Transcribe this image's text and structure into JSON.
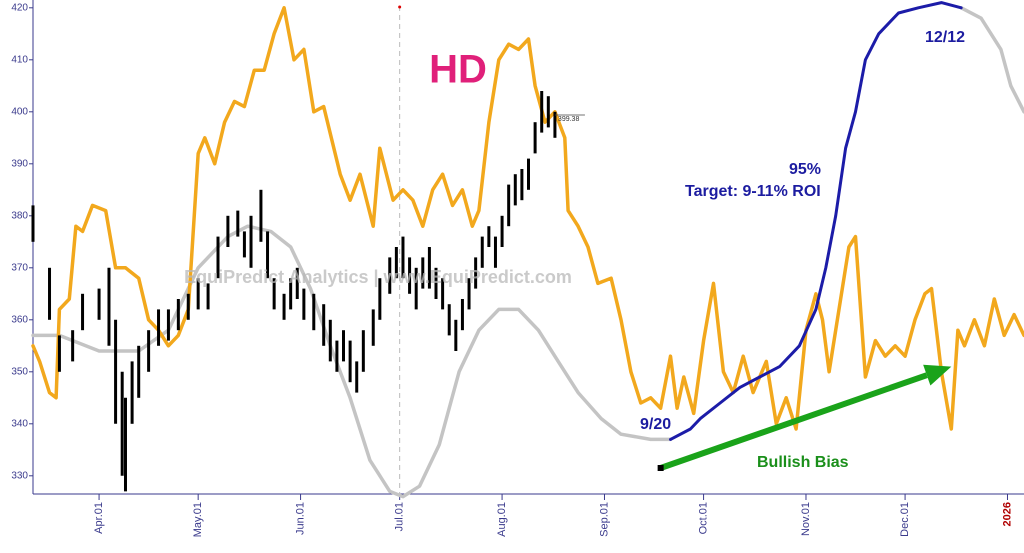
{
  "chart_data": {
    "type": "line",
    "title": "HD",
    "watermark": "EquiPredict Analytics | www.EquiPredict.com",
    "xlim": [
      -20,
      280
    ],
    "ylim": [
      326.5,
      421.5
    ],
    "yticks": [
      330,
      340,
      350,
      360,
      370,
      380,
      390,
      400,
      410,
      420
    ],
    "xticks": [
      {
        "value": 0,
        "label": "Apr.01"
      },
      {
        "value": 30,
        "label": "May.01"
      },
      {
        "value": 61,
        "label": "Jun.01"
      },
      {
        "value": 91,
        "label": "Jul.01"
      },
      {
        "value": 122,
        "label": "Aug.01"
      },
      {
        "value": 153,
        "label": "Sep.01"
      },
      {
        "value": 183,
        "label": "Oct.01"
      },
      {
        "value": 214,
        "label": "Nov.01"
      },
      {
        "value": 244,
        "label": "Dec.01"
      },
      {
        "value": 275,
        "label": "2026",
        "color": "#b00000"
      }
    ],
    "marker_x": 91,
    "series": [
      {
        "color": "#f2a81d",
        "x": [
          -20,
          -18,
          -15,
          -13,
          -12,
          -9,
          -7,
          -5,
          -2,
          2,
          5,
          8,
          12,
          15,
          18,
          21,
          24,
          27,
          30,
          32,
          35,
          38,
          41,
          44,
          47,
          50,
          53,
          56,
          59,
          62,
          65,
          68,
          73,
          76,
          79,
          83,
          85,
          89,
          92,
          95,
          98,
          101,
          104,
          107,
          110,
          113,
          115,
          118,
          121,
          124,
          127,
          130,
          132,
          135,
          138,
          141,
          142,
          145,
          148,
          151,
          155,
          158,
          161,
          164,
          167,
          170,
          173,
          175,
          177,
          180,
          183,
          186,
          189,
          192,
          195,
          198,
          202,
          205,
          208,
          211,
          214,
          217,
          219,
          221,
          224,
          227,
          229,
          232,
          235,
          238,
          241,
          244,
          247,
          250,
          252,
          255,
          258,
          260,
          262,
          265,
          268,
          271,
          274,
          277,
          280
        ],
        "values": [
          355,
          352,
          346,
          345,
          362,
          364,
          378,
          377,
          382,
          381,
          370,
          370,
          368,
          360,
          358,
          355,
          357,
          362,
          392,
          395,
          390,
          398,
          402,
          401,
          408,
          408,
          415,
          420,
          410,
          412,
          400,
          401,
          388,
          383,
          388,
          378,
          393,
          383,
          385,
          383,
          378,
          385,
          388,
          382,
          385,
          378,
          381,
          398,
          410,
          413,
          412,
          414,
          405,
          398,
          400,
          395,
          381,
          378,
          374,
          367,
          368,
          360,
          350,
          344,
          345,
          343,
          353,
          343,
          349,
          342,
          356,
          367,
          350,
          346,
          353,
          346,
          352,
          340,
          345,
          339,
          358,
          365,
          360,
          350,
          362,
          374,
          376,
          349,
          356,
          353,
          355,
          353,
          360,
          365,
          366,
          350,
          339,
          358,
          355,
          360,
          355,
          364,
          357,
          361,
          357
        ]
      },
      {
        "color": "#c4c4c4",
        "x": [
          -20,
          -12,
          0,
          12,
          21,
          30,
          39,
          45,
          52,
          58,
          64,
          70,
          76,
          82,
          88,
          92,
          97,
          103,
          109,
          115,
          121,
          127,
          133,
          139,
          145,
          152,
          158,
          167,
          173,
          200,
          261,
          267,
          273,
          276,
          280
        ],
        "values": [
          357,
          357,
          354,
          354,
          358,
          370,
          376,
          378,
          377,
          374,
          366,
          355,
          345,
          333,
          327,
          326,
          328,
          336,
          350,
          358,
          362,
          362,
          358,
          352,
          346,
          341,
          338,
          337,
          337,
          null,
          420,
          418,
          412,
          405,
          400
        ]
      },
      {
        "color": "#1c1ca8",
        "x": [
          173,
          179,
          182,
          188,
          194,
          200,
          206,
          212,
          217,
          220,
          223,
          226,
          229,
          232,
          236,
          242,
          248,
          255,
          261
        ],
        "values": [
          337,
          339,
          341,
          344,
          347,
          349,
          351,
          355,
          362,
          370,
          380,
          393,
          400,
          410,
          415,
          419,
          420,
          421,
          420
        ]
      }
    ],
    "price_bars": {
      "color": "#000000",
      "x": [
        -20,
        -15,
        -12,
        -8,
        -5,
        0,
        3,
        5,
        7,
        8,
        10,
        12,
        15,
        18,
        21,
        24,
        27,
        30,
        33,
        36,
        39,
        42,
        44,
        46,
        49,
        51,
        53,
        56,
        58,
        60,
        62,
        65,
        68,
        70,
        72,
        74,
        76,
        78,
        80,
        83,
        85,
        88,
        90,
        92,
        94,
        96,
        98,
        100,
        102,
        104,
        106,
        108,
        110,
        112,
        114,
        116,
        118,
        120,
        122,
        124,
        126,
        128,
        130,
        132,
        134,
        136,
        138
      ],
      "high": [
        382,
        370,
        357,
        358,
        365,
        366,
        370,
        360,
        350,
        345,
        352,
        355,
        358,
        362,
        362,
        364,
        365,
        368,
        367,
        376,
        380,
        381,
        377,
        380,
        385,
        377,
        368,
        365,
        368,
        370,
        366,
        365,
        363,
        360,
        356,
        358,
        356,
        352,
        358,
        362,
        368,
        372,
        374,
        376,
        372,
        370,
        372,
        374,
        370,
        368,
        363,
        360,
        364,
        368,
        372,
        376,
        378,
        376,
        380,
        386,
        388,
        389,
        391,
        398,
        404,
        403,
        400
      ],
      "low": [
        375,
        360,
        350,
        352,
        358,
        360,
        355,
        340,
        330,
        327,
        340,
        345,
        350,
        355,
        356,
        358,
        360,
        362,
        362,
        368,
        374,
        376,
        372,
        370,
        375,
        368,
        362,
        360,
        362,
        364,
        360,
        358,
        355,
        352,
        350,
        352,
        348,
        346,
        350,
        355,
        360,
        365,
        368,
        368,
        365,
        362,
        366,
        366,
        364,
        362,
        357,
        354,
        358,
        362,
        366,
        370,
        374,
        370,
        374,
        378,
        382,
        383,
        385,
        392,
        396,
        397,
        395
      ]
    },
    "last_price": 399.38,
    "trend_arrow": {
      "color": "#1aa31a",
      "x": [
        170,
        258
      ],
      "values": [
        331.5,
        351
      ]
    },
    "annotations": [
      "9/20",
      "12/12",
      "95%",
      "Target: 9-11% ROI",
      "Bullish Bias"
    ]
  }
}
